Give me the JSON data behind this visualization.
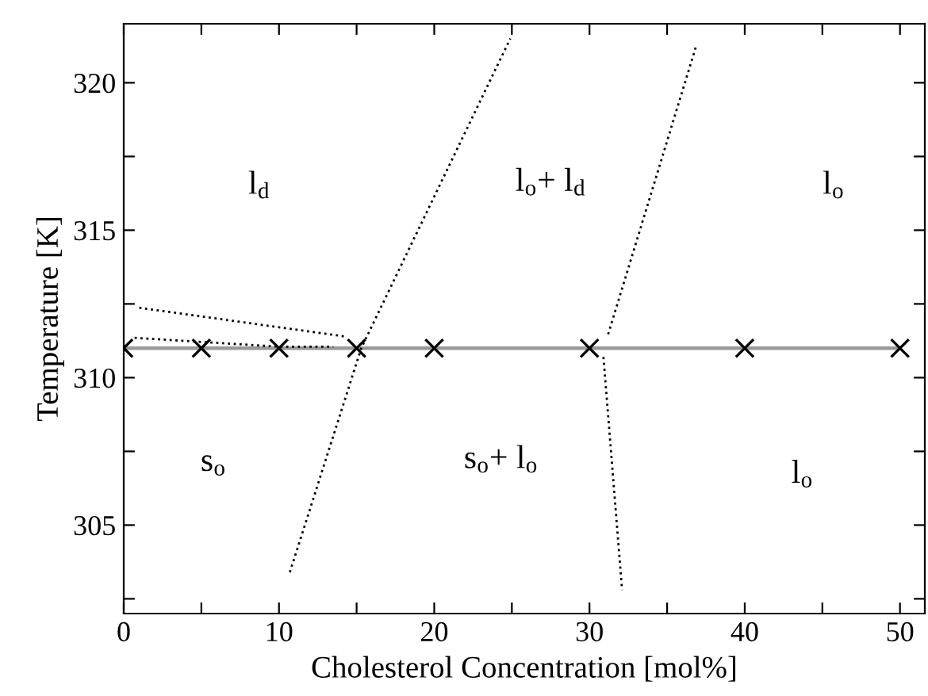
{
  "chart_data": {
    "type": "line",
    "xlabel": "Cholesterol Concentration [mol%]",
    "ylabel": "Temperature [K]",
    "xlim": [
      0,
      51.6
    ],
    "ylim": [
      302,
      322
    ],
    "xticks": [
      0,
      {
        "value": 5,
        "label": null
      },
      10,
      {
        "value": 15,
        "label": null
      },
      20,
      {
        "value": 25,
        "label": null
      },
      30,
      {
        "value": 35,
        "label": null
      },
      40,
      {
        "value": 45,
        "label": null
      },
      50
    ],
    "yticks": [
      {
        "value": 302.5,
        "label": null
      },
      305,
      {
        "value": 307.5,
        "label": null
      },
      310,
      {
        "value": 312.5,
        "label": null
      },
      315,
      {
        "value": 317.5,
        "label": null
      },
      320
    ],
    "grid": false,
    "legend": false,
    "series": [
      {
        "color": "#999999",
        "marker": "cross",
        "line_style": "solid",
        "x": [
          0,
          5,
          10,
          15,
          20,
          30,
          40,
          50
        ],
        "values": [
          311,
          311,
          311,
          311,
          311,
          311,
          311,
          311
        ]
      },
      {
        "color": "#000000",
        "marker": "none",
        "line_style": "dotted",
        "x": [
          1.0,
          14.2
        ],
        "values": [
          312.37,
          311.4
        ]
      },
      {
        "color": "#000000",
        "marker": "none",
        "line_style": "dotted",
        "x": [
          0.7,
          10,
          13.5
        ],
        "values": [
          311.35,
          311.05,
          311.05
        ]
      },
      {
        "color": "#000000",
        "marker": "none",
        "line_style": "dotted",
        "x": [
          10.7,
          15.3,
          24.9
        ],
        "values": [
          303.4,
          311.0,
          321.5
        ]
      },
      {
        "color": "#000000",
        "marker": "none",
        "line_style": "dotted",
        "x": [
          31.2,
          36.9
        ],
        "values": [
          311.47,
          321.3
        ]
      },
      {
        "color": "#000000",
        "marker": "none",
        "line_style": "dotted",
        "x": [
          30.9,
          32.1
        ],
        "values": [
          310.7,
          302.8
        ]
      }
    ],
    "annotations": [
      "l$_{d}$",
      "l$_{o}$+ l$_{d}$",
      "l$_{o}$",
      "s$_{o}$",
      "s$_{o}$+ l$_{o}$",
      "l$_{o}$"
    ]
  }
}
